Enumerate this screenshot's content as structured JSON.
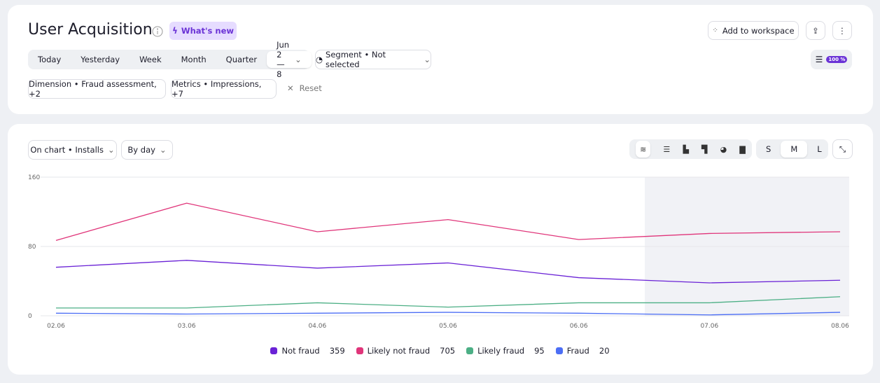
{
  "header": {
    "title": "User Acquisition",
    "badge": "What's new",
    "add_to_workspace": "Add to workspace",
    "periods": [
      "Today",
      "Yesterday",
      "Week",
      "Month",
      "Quarter",
      "Jun 2 — 8"
    ],
    "segment": "Segment • Not selected",
    "sampling": "100 %",
    "filters": [
      "Dimension • Fraud assessment, +2",
      "Metrics • Impressions, +7"
    ],
    "reset": "Reset"
  },
  "toolbar": {
    "on_chart": "On chart • Installs",
    "grouping": "By day",
    "sizes": [
      "S",
      "M",
      "L"
    ]
  },
  "chart_data": {
    "type": "line",
    "categories": [
      "02.06",
      "03.06",
      "04.06",
      "05.06",
      "06.06",
      "07.06",
      "08.06"
    ],
    "ylim": [
      0,
      160
    ],
    "yticks": [
      0,
      80,
      160
    ],
    "grid": true,
    "series": [
      {
        "name": "Not fraud",
        "total": 359,
        "color": "#6a22d6",
        "values": [
          56,
          64,
          55,
          61,
          44,
          38,
          41
        ]
      },
      {
        "name": "Likely not fraud",
        "total": 705,
        "color": "#e0357a",
        "values": [
          87,
          130,
          97,
          111,
          88,
          95,
          97
        ]
      },
      {
        "name": "Likely fraud",
        "total": 95,
        "color": "#4caf85",
        "values": [
          9,
          9,
          15,
          10,
          15,
          15,
          22
        ]
      },
      {
        "name": "Fraud",
        "total": 20,
        "color": "#4c6ef5",
        "values": [
          3,
          2,
          3,
          4,
          3,
          1,
          4
        ]
      }
    ]
  }
}
